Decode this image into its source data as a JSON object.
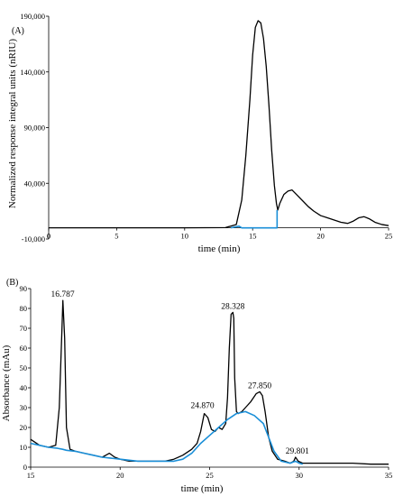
{
  "chart_data": [
    {
      "type": "line",
      "panel_label": "(A)",
      "xlabel": "time (min)",
      "ylabel": "Normalized response integral units (nRIU)",
      "xlim": [
        0,
        25
      ],
      "ylim": [
        -10000,
        190000
      ],
      "xticks": [
        0,
        5,
        10,
        15,
        20,
        25
      ],
      "xtick_labels": [
        "0",
        "5",
        "10",
        "15",
        "20",
        "25"
      ],
      "yticks": [
        -10000,
        40000,
        90000,
        140000,
        190000
      ],
      "ytick_labels": [
        "-10,000",
        "40,000",
        "90,000",
        "140,000",
        "190,000"
      ],
      "grid": false,
      "series": [
        {
          "color": "#000000",
          "x": [
            0,
            5,
            10,
            13.0,
            13.8,
            14.2,
            14.5,
            14.8,
            15.0,
            15.2,
            15.4,
            15.6,
            15.8,
            16.0,
            16.2,
            16.4,
            16.6,
            16.75,
            16.85,
            17.0,
            17.3,
            17.6,
            17.9,
            18.3,
            18.7,
            19.1,
            19.5,
            20.0,
            20.5,
            21.0,
            21.5,
            22.0,
            22.4,
            22.8,
            23.2,
            23.6,
            24.0,
            24.5,
            25.0
          ],
          "y": [
            0,
            0,
            0,
            200,
            3000,
            25000,
            65000,
            115000,
            155000,
            180000,
            186000,
            184000,
            170000,
            145000,
            110000,
            70000,
            38000,
            22000,
            16000,
            22000,
            30000,
            33000,
            34000,
            29000,
            24000,
            19000,
            15000,
            11000,
            9000,
            7000,
            5000,
            4000,
            6000,
            9000,
            10000,
            8000,
            5000,
            3000,
            2000
          ]
        },
        {
          "color": "#1a8fd8",
          "x": [
            13.4,
            14.0,
            14.2,
            16.8,
            16.8
          ],
          "y": [
            0,
            1500,
            0,
            0,
            16000
          ]
        }
      ]
    },
    {
      "type": "line",
      "panel_label": "(B)",
      "xlabel": "time (min)",
      "ylabel": "Absorbance (mAu)",
      "xlim": [
        15,
        35
      ],
      "ylim": [
        0,
        90
      ],
      "xticks": [
        15,
        20,
        25,
        30,
        35
      ],
      "xtick_labels": [
        "15",
        "20",
        "25",
        "30",
        "35"
      ],
      "yticks": [
        0,
        10,
        20,
        30,
        40,
        50,
        60,
        70,
        80,
        90
      ],
      "ytick_labels": [
        "0",
        "10",
        "20",
        "30",
        "40",
        "50",
        "60",
        "70",
        "80",
        "90"
      ],
      "grid": false,
      "annotations": [
        {
          "text": "16.787",
          "x": 16.79,
          "y": 84
        },
        {
          "text": "24.870",
          "x": 24.6,
          "y": 28
        },
        {
          "text": "28.328",
          "x": 26.3,
          "y": 78
        },
        {
          "text": "27.850",
          "x": 27.8,
          "y": 38
        },
        {
          "text": "29.801",
          "x": 29.9,
          "y": 5
        }
      ],
      "series": [
        {
          "color": "#000000",
          "x": [
            15.0,
            15.5,
            16.0,
            16.4,
            16.6,
            16.75,
            16.8,
            16.9,
            17.0,
            17.2,
            17.5,
            18.0,
            18.5,
            19.0,
            19.2,
            19.4,
            19.7,
            20.0,
            20.5,
            21.0,
            21.5,
            22.0,
            22.5,
            23.0,
            23.5,
            24.0,
            24.3,
            24.5,
            24.7,
            24.9,
            25.1,
            25.3,
            25.5,
            25.7,
            25.9,
            26.0,
            26.1,
            26.2,
            26.3,
            26.35,
            26.4,
            26.5,
            26.6,
            26.8,
            27.0,
            27.3,
            27.6,
            27.8,
            27.95,
            28.1,
            28.3,
            28.5,
            28.8,
            29.2,
            29.5,
            29.7,
            29.8,
            29.95,
            30.2,
            30.5,
            31.0,
            31.5,
            32.0,
            33.0,
            34.0,
            35.0
          ],
          "y": [
            14,
            11,
            10,
            11,
            30,
            70,
            84,
            65,
            20,
            9,
            8,
            7,
            6,
            5,
            6,
            7,
            5,
            4,
            3,
            3,
            3,
            3,
            3,
            4,
            6,
            9,
            12,
            18,
            27,
            25,
            19,
            18,
            20,
            19,
            22,
            35,
            60,
            77,
            78,
            75,
            45,
            28,
            27,
            28,
            30,
            33,
            37,
            38,
            36,
            28,
            15,
            8,
            4,
            3,
            2,
            3,
            5,
            3,
            2,
            2,
            2,
            2,
            2,
            2,
            1.5,
            1.5
          ]
        },
        {
          "color": "#1a8fd8",
          "x": [
            15.0,
            15.5,
            16.0,
            16.5,
            16.787,
            17.0,
            17.5,
            18.0,
            18.5,
            19.0,
            19.5,
            20.0,
            20.5,
            21.0,
            22.0,
            23.0,
            23.5,
            24.0,
            24.5,
            25.0,
            25.5,
            26.0,
            26.5,
            27.0,
            27.5,
            28.0,
            28.3,
            28.6,
            29.0,
            29.5,
            29.801,
            30.0,
            30.2
          ],
          "y": [
            12,
            11,
            10,
            9.5,
            9,
            8.5,
            8,
            7,
            6,
            5,
            4.5,
            4,
            3.5,
            3,
            3,
            3,
            4,
            7,
            12,
            16,
            20,
            24,
            27,
            28,
            26,
            22,
            15,
            8,
            3,
            2,
            3,
            2,
            1.5
          ]
        }
      ]
    }
  ]
}
